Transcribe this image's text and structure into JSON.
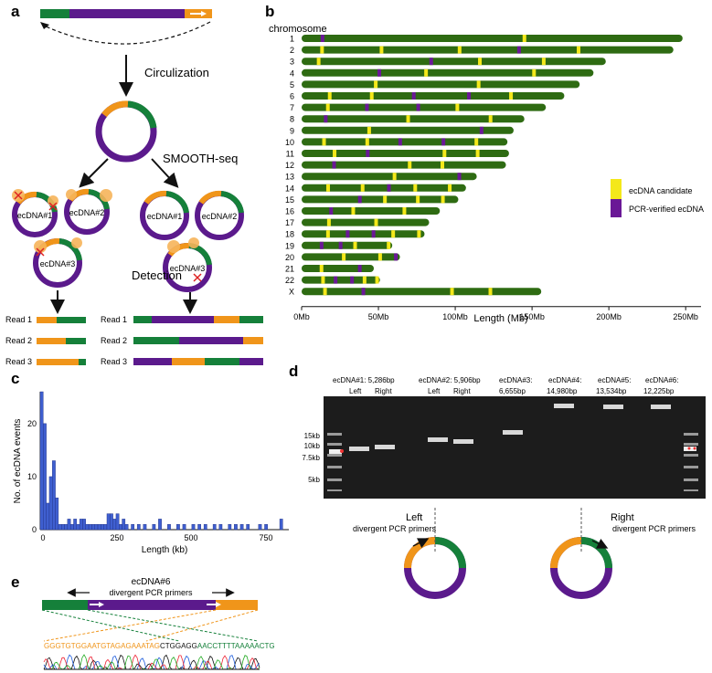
{
  "colors": {
    "green": "#15803a",
    "purple": "#5b1a8c",
    "orange": "#f0951a",
    "chr": "#2e6b12",
    "yellow": "#f4e81a",
    "verified": "#6a1896",
    "gel_bg": "#1a1a1a",
    "hist": "#3f5fd0"
  },
  "panel_a": {
    "letter": "a",
    "step1": "Circulization",
    "step2": "SMOOTH-seq",
    "step3": "Detection",
    "left_circles": [
      "ecDNA#1",
      "ecDNA#2",
      "ecDNA#3"
    ],
    "right_circles": [
      "ecDNA#1",
      "ecDNA#2",
      "ecDNA#3"
    ],
    "reads_left": [
      "Read 1",
      "Read 2",
      "Read 3"
    ],
    "reads_right": [
      "Read 1",
      "Read 2",
      "Read 3"
    ]
  },
  "panel_b": {
    "letter": "b",
    "chrom_label": "chromosome",
    "legend": {
      "candidate": "ecDNA candidate",
      "verified": "PCR-verified ecDNA"
    },
    "xlabel": "Length (Mb)",
    "xticks": [
      "0Mb",
      "50Mb",
      "100Mb",
      "150Mb",
      "200Mb",
      "250Mb"
    ]
  },
  "chart_data": [
    {
      "type": "bar",
      "title": "",
      "xlabel": "Length (Mb)",
      "ylabel": "chromosome",
      "categories": [
        "1",
        "2",
        "3",
        "4",
        "5",
        "6",
        "7",
        "8",
        "9",
        "10",
        "11",
        "12",
        "13",
        "14",
        "15",
        "16",
        "17",
        "18",
        "19",
        "20",
        "21",
        "22",
        "X"
      ],
      "values": [
        248,
        242,
        198,
        190,
        181,
        171,
        159,
        145,
        138,
        134,
        135,
        133,
        114,
        107,
        102,
        90,
        83,
        80,
        59,
        64,
        47,
        51,
        156
      ],
      "xlim": [
        0,
        260
      ]
    },
    {
      "type": "bar",
      "title": "",
      "xlabel": "Length (kb)",
      "ylabel": "No. of ecDNA events",
      "xlim": [
        0,
        820
      ],
      "ylim": [
        0,
        26
      ],
      "bin_width": 10,
      "x": [
        5,
        15,
        25,
        35,
        45,
        55,
        65,
        75,
        85,
        95,
        105,
        115,
        125,
        135,
        145,
        155,
        165,
        175,
        185,
        195,
        205,
        215,
        225,
        235,
        245,
        255,
        265,
        275,
        285,
        305,
        325,
        345,
        375,
        395,
        425,
        455,
        475,
        505,
        525,
        545,
        575,
        595,
        625,
        645,
        665,
        685,
        725,
        745,
        795
      ],
      "values": [
        26,
        20,
        5,
        10,
        13,
        6,
        1,
        1,
        1,
        2,
        1,
        2,
        1,
        2,
        2,
        1,
        1,
        1,
        1,
        1,
        1,
        1,
        3,
        3,
        2,
        3,
        1,
        2,
        1,
        1,
        1,
        1,
        1,
        2,
        1,
        1,
        1,
        1,
        1,
        1,
        1,
        1,
        1,
        1,
        1,
        1,
        1,
        1,
        2
      ]
    }
  ],
  "panel_c": {
    "letter": "c",
    "ylabel": "No. of ecDNA events",
    "xlabel": "Length (kb)",
    "xticks": [
      "0",
      "250",
      "500",
      "750"
    ],
    "yticks": [
      "0",
      "10",
      "20"
    ]
  },
  "panel_d": {
    "letter": "d",
    "lanes": [
      {
        "title": "ecDNA#1: 5,286bp",
        "sub": [
          "Left",
          "Right"
        ]
      },
      {
        "title": "ecDNA#2: 5,906bp",
        "sub": [
          "Left",
          "Right"
        ]
      },
      {
        "title": "ecDNA#3:",
        "sub": [
          "6,655bp"
        ]
      },
      {
        "title": "ecDNA#4:",
        "sub": [
          "14,980bp"
        ]
      },
      {
        "title": "ecDNA#5:",
        "sub": [
          "13,534bp"
        ]
      },
      {
        "title": "ecDNA#6:",
        "sub": [
          "12,225bp"
        ]
      }
    ],
    "ladder": [
      "15kb",
      "10kb",
      "7.5kb",
      "5kb"
    ],
    "left_label": "Left",
    "right_label": "Right",
    "primer_text": "divergent PCR primers"
  },
  "panel_e": {
    "letter": "e",
    "title": "ecDNA#6",
    "subtitle": "divergent PCR primers",
    "seq_orange": "GGGTGTGGAATGTAGAGAAATAG",
    "seq_black": "CTGGAGG",
    "seq_green": "AACCTTTTAAAAACTG"
  }
}
